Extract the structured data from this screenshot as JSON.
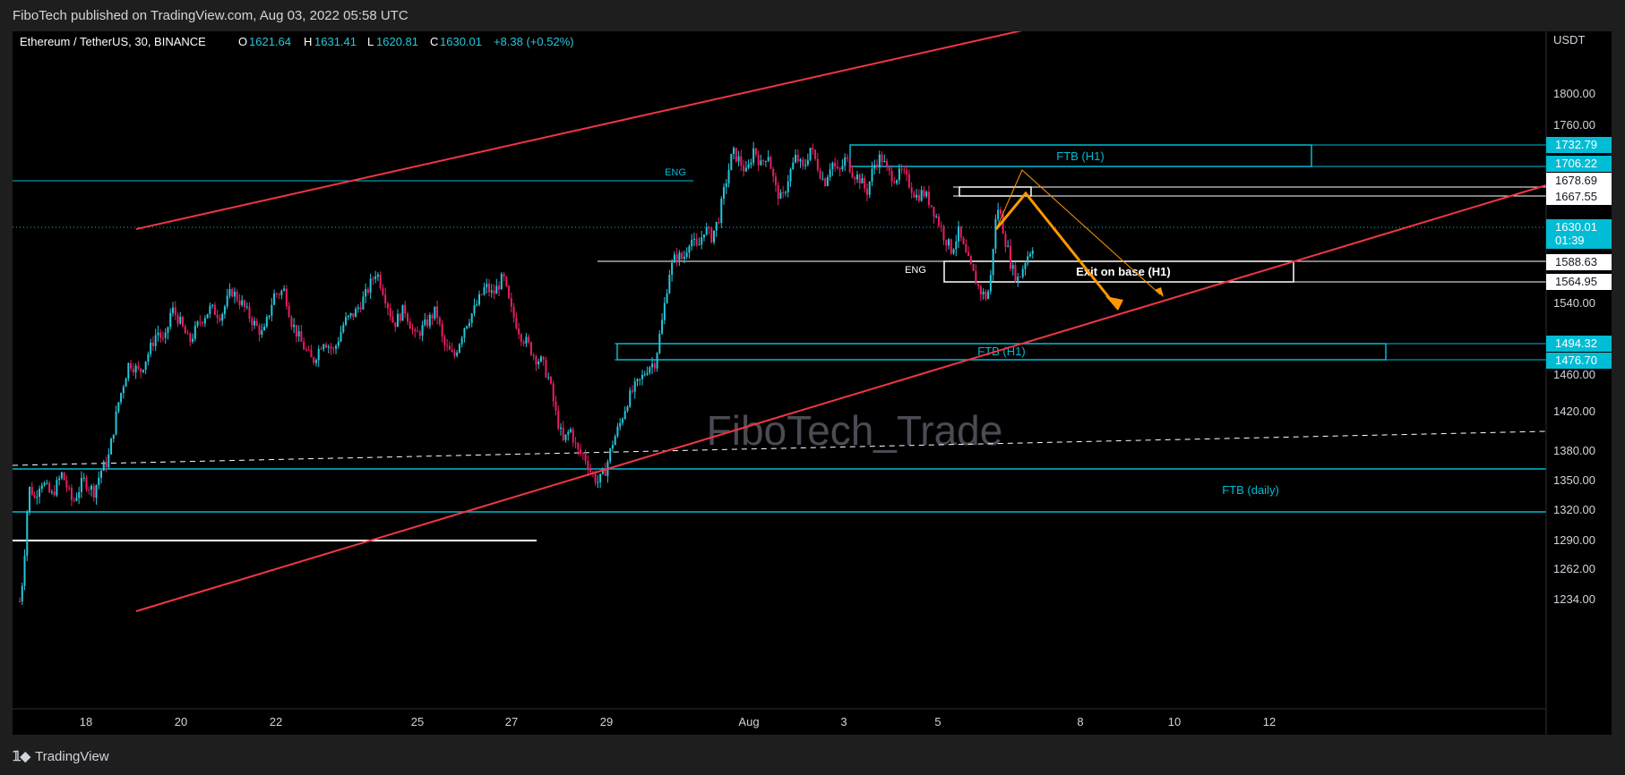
{
  "header": {
    "caption": "FiboTech published on TradingView.com, Aug 03, 2022 05:58 UTC"
  },
  "footer": {
    "brand": "TradingView",
    "logo_icon": "tradingview-logo-icon"
  },
  "colors": {
    "background": "#000000",
    "up": "#26c6da",
    "down": "#e91e63",
    "channel": "#f23645",
    "zone": "#00bcd4",
    "projection": "#ff9800",
    "white_line": "#ffffff",
    "axis_text": "#d1d4dc"
  },
  "chart_data": {
    "type": "candlestick",
    "symbol": "Ethereum / TetherUS, 30, BINANCE",
    "ohlc": {
      "o_label": "O",
      "o": "1621.64",
      "h_label": "H",
      "h": "1631.41",
      "l_label": "L",
      "l": "1620.81",
      "c_label": "C",
      "c": "1630.01",
      "change": "+8.38 (+0.52%)"
    },
    "currency": "USDT",
    "watermark": "FiboTech_Trade",
    "y_ticks": [
      "1800.00",
      "1760.00",
      "1540.00",
      "1460.00",
      "1420.00",
      "1380.00",
      "1350.00",
      "1320.00",
      "1290.00",
      "1262.00",
      "1234.00"
    ],
    "x_ticks": [
      "18",
      "20",
      "22",
      "25",
      "27",
      "29",
      "Aug",
      "3",
      "5",
      "8",
      "10",
      "12"
    ],
    "price_labels": [
      {
        "text": "1732.79",
        "style": "cyan"
      },
      {
        "text": "1706.22",
        "style": "cyan"
      },
      {
        "text": "1678.69",
        "style": "white"
      },
      {
        "text": "1667.55",
        "style": "white"
      },
      {
        "text": "1630.01",
        "style": "cyan"
      },
      {
        "text": "01:39",
        "style": "cyan"
      },
      {
        "text": "1588.63",
        "style": "white"
      },
      {
        "text": "1564.95",
        "style": "white"
      },
      {
        "text": "1494.32",
        "style": "cyan"
      },
      {
        "text": "1476.70",
        "style": "cyan"
      }
    ],
    "annotations": {
      "ftb_h1_top": "FTB (H1)",
      "ftb_h1_bottom": "FTB (H1)",
      "exit_on_base": "Exit on base (H1)",
      "ftb_daily": "FTB (daily)",
      "eng_left": "ENG",
      "eng_right": "ENG"
    },
    "price_path": [
      [
        0,
        1232
      ],
      [
        2,
        1262
      ],
      [
        4,
        1330
      ],
      [
        6,
        1365
      ],
      [
        8,
        1345
      ],
      [
        12,
        1368
      ],
      [
        18,
        1350
      ],
      [
        24,
        1375
      ],
      [
        30,
        1342
      ],
      [
        36,
        1368
      ],
      [
        42,
        1355
      ],
      [
        46,
        1378
      ],
      [
        50,
        1390
      ],
      [
        56,
        1455
      ],
      [
        62,
        1500
      ],
      [
        68,
        1488
      ],
      [
        74,
        1515
      ],
      [
        78,
        1535
      ],
      [
        82,
        1520
      ],
      [
        86,
        1560
      ],
      [
        90,
        1548
      ],
      [
        96,
        1522
      ],
      [
        102,
        1545
      ],
      [
        108,
        1560
      ],
      [
        114,
        1552
      ],
      [
        120,
        1580
      ],
      [
        126,
        1565
      ],
      [
        132,
        1545
      ],
      [
        138,
        1530
      ],
      [
        144,
        1575
      ],
      [
        150,
        1580
      ],
      [
        154,
        1545
      ],
      [
        160,
        1520
      ],
      [
        166,
        1500
      ],
      [
        172,
        1525
      ],
      [
        178,
        1512
      ],
      [
        184,
        1545
      ],
      [
        190,
        1555
      ],
      [
        196,
        1575
      ],
      [
        202,
        1602
      ],
      [
        206,
        1580
      ],
      [
        212,
        1542
      ],
      [
        218,
        1560
      ],
      [
        224,
        1528
      ],
      [
        230,
        1542
      ],
      [
        236,
        1558
      ],
      [
        240,
        1520
      ],
      [
        246,
        1505
      ],
      [
        252,
        1540
      ],
      [
        258,
        1560
      ],
      [
        264,
        1585
      ],
      [
        268,
        1575
      ],
      [
        274,
        1595
      ],
      [
        278,
        1560
      ],
      [
        284,
        1530
      ],
      [
        288,
        1520
      ],
      [
        292,
        1505
      ],
      [
        296,
        1500
      ],
      [
        300,
        1480
      ],
      [
        304,
        1440
      ],
      [
        308,
        1410
      ],
      [
        312,
        1425
      ],
      [
        316,
        1400
      ],
      [
        320,
        1395
      ],
      [
        324,
        1375
      ],
      [
        328,
        1365
      ],
      [
        332,
        1380
      ],
      [
        336,
        1410
      ],
      [
        340,
        1430
      ],
      [
        344,
        1455
      ],
      [
        348,
        1470
      ],
      [
        352,
        1480
      ],
      [
        356,
        1495
      ],
      [
        360,
        1500
      ],
      [
        364,
        1545
      ],
      [
        368,
        1600
      ],
      [
        372,
        1620
      ],
      [
        376,
        1615
      ],
      [
        380,
        1640
      ],
      [
        384,
        1625
      ],
      [
        388,
        1650
      ],
      [
        392,
        1640
      ],
      [
        396,
        1660
      ],
      [
        400,
        1700
      ],
      [
        404,
        1735
      ],
      [
        408,
        1725
      ],
      [
        412,
        1710
      ],
      [
        416,
        1740
      ],
      [
        420,
        1720
      ],
      [
        424,
        1735
      ],
      [
        428,
        1695
      ],
      [
        432,
        1680
      ],
      [
        436,
        1710
      ],
      [
        440,
        1730
      ],
      [
        444,
        1715
      ],
      [
        448,
        1740
      ],
      [
        452,
        1720
      ],
      [
        456,
        1700
      ],
      [
        460,
        1725
      ],
      [
        464,
        1710
      ],
      [
        468,
        1728
      ],
      [
        472,
        1712
      ],
      [
        476,
        1705
      ],
      [
        480,
        1690
      ],
      [
        484,
        1720
      ],
      [
        488,
        1730
      ],
      [
        492,
        1712
      ],
      [
        496,
        1706
      ],
      [
        500,
        1712
      ],
      [
        504,
        1700
      ],
      [
        508,
        1685
      ],
      [
        512,
        1690
      ],
      [
        516,
        1678
      ],
      [
        520,
        1660
      ],
      [
        524,
        1640
      ],
      [
        528,
        1625
      ],
      [
        532,
        1645
      ],
      [
        536,
        1620
      ],
      [
        540,
        1600
      ],
      [
        544,
        1580
      ],
      [
        548,
        1572
      ],
      [
        550,
        1590
      ],
      [
        552,
        1640
      ],
      [
        554,
        1675
      ],
      [
        556,
        1662
      ],
      [
        558,
        1640
      ],
      [
        560,
        1625
      ],
      [
        562,
        1605
      ],
      [
        566,
        1592
      ],
      [
        570,
        1615
      ],
      [
        574,
        1630
      ]
    ]
  }
}
